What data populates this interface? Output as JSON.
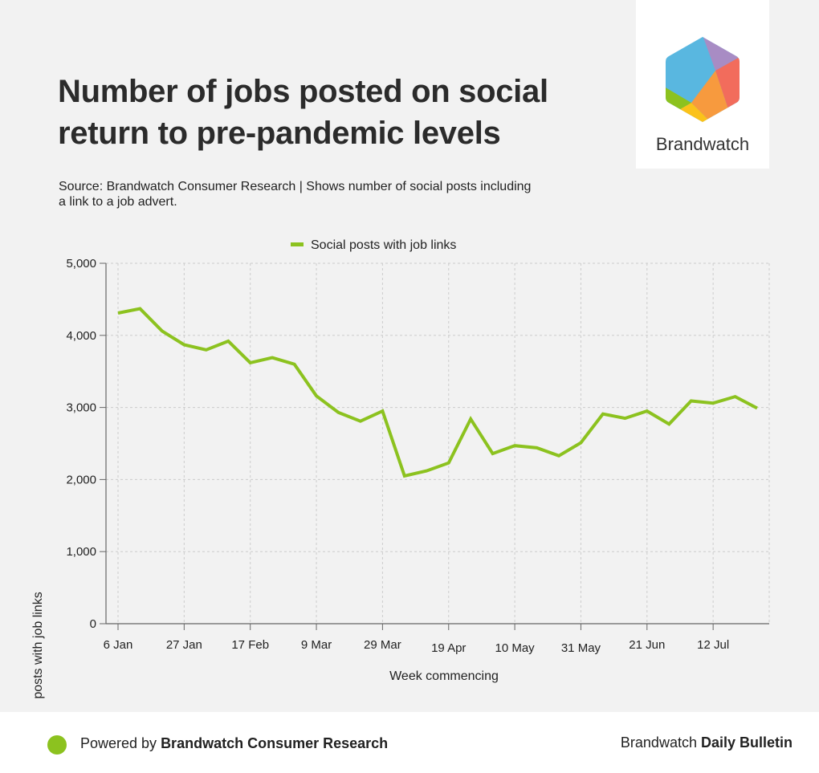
{
  "header": {
    "title": "Number of jobs posted on social return to pre-pandemic levels",
    "subtitle": "Source: Brandwatch Consumer Research | Shows number of social posts including a link to a job advert."
  },
  "logo": {
    "text": "Brandwatch",
    "icon": "brandwatch-hexagon-logo"
  },
  "footer": {
    "powered_prefix": "Powered by ",
    "powered_brand": "Brandwatch Consumer Research",
    "right_prefix": "Brandwatch ",
    "right_bold": "Daily Bulletin"
  },
  "colors": {
    "line": "#8cc21f",
    "background": "#f2f2f2",
    "grid": "#cccccc"
  },
  "chart_data": {
    "type": "line",
    "title": "Number of jobs posted on social return to pre-pandemic levels",
    "xlabel": "Week commencing",
    "ylabel": "Social posts with job links",
    "ylim": [
      0,
      5000
    ],
    "yticks": [
      "0",
      "1,000",
      "2,000",
      "3,000",
      "4,000",
      "5,000"
    ],
    "tick_categories": [
      "6 Jan",
      "27 Jan",
      "17 Feb",
      "9 Mar",
      "29 Mar",
      "19 Apr",
      "10 May",
      "31 May",
      "21 Jun",
      "12 Jul"
    ],
    "legend": {
      "position": "top-center"
    },
    "grid": true,
    "series": [
      {
        "name": "Social posts with job links",
        "x": [
          "6 Jan",
          "13 Jan",
          "20 Jan",
          "27 Jan",
          "3 Feb",
          "10 Feb",
          "17 Feb",
          "24 Feb",
          "2 Mar",
          "9 Mar",
          "16 Mar",
          "23 Mar",
          "29 Mar",
          "6 Apr",
          "13 Apr",
          "19 Apr",
          "26 Apr",
          "3 May",
          "10 May",
          "17 May",
          "24 May",
          "31 May",
          "7 Jun",
          "14 Jun",
          "21 Jun",
          "28 Jun",
          "5 Jul",
          "12 Jul",
          "19 Jul",
          "26 Jul"
        ],
        "values": [
          4310,
          4370,
          4060,
          3870,
          3800,
          3920,
          3620,
          3690,
          3600,
          3160,
          2930,
          2810,
          2950,
          2050,
          2120,
          2230,
          2840,
          2360,
          2470,
          2440,
          2330,
          2510,
          2910,
          2850,
          2950,
          2770,
          3090,
          3060,
          3150,
          2990
        ]
      }
    ]
  }
}
